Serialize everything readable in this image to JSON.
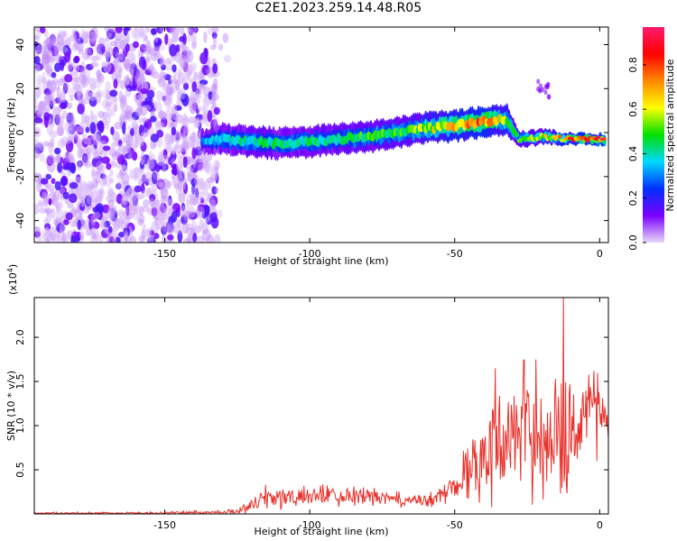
{
  "page": {
    "title": "C2E1.2023.259.14.48.R05"
  },
  "colors": {
    "snr_line": "#e8302a",
    "axis": "#000000",
    "background": "#ffffff"
  },
  "chart_data": [
    {
      "type": "heatmap",
      "title": "",
      "xlabel": "Height of straight line (km)",
      "ylabel": "Frequency (Hz)",
      "xlim": [
        -195,
        3
      ],
      "ylim": [
        -50,
        48
      ],
      "x_ticks": [
        -150,
        -100,
        -50,
        0
      ],
      "x_tick_labels": [
        "-150",
        "-100",
        "-50",
        "0"
      ],
      "y_ticks": [
        -40,
        -20,
        0,
        20,
        40
      ],
      "y_tick_labels": [
        "-40",
        "-20",
        "0",
        "20",
        "40"
      ],
      "colorbar": {
        "label": "Normalized spectral amplitude",
        "range": [
          0,
          0.97
        ],
        "ticks": [
          0.0,
          0.2,
          0.4,
          0.6,
          0.8
        ],
        "tick_labels": [
          "0.0",
          "0.2",
          "0.4",
          "0.6",
          "0.8"
        ],
        "colormap": [
          "#e8d8f8",
          "#7a00ff",
          "#0030ff",
          "#00d8ff",
          "#00e000",
          "#ffff00",
          "#ff8800",
          "#ff0000",
          "#ff1a6e"
        ]
      },
      "noise_region": {
        "x_range": [
          -195,
          -132
        ],
        "amplitude": 0.15
      },
      "ridge": {
        "x": [
          -137,
          -130,
          -120,
          -110,
          -100,
          -90,
          -80,
          -70,
          -60,
          -50,
          -40,
          -32,
          -28,
          -20,
          -10,
          0,
          2
        ],
        "frequency": [
          -4,
          -3,
          -4,
          -5,
          -4,
          -3,
          -2,
          0,
          2,
          3,
          5,
          6,
          -3,
          -2,
          -3,
          -3,
          -3
        ],
        "width": [
          3,
          4,
          4,
          4,
          4,
          4,
          4,
          4,
          4,
          4,
          4,
          4,
          2,
          2,
          1.5,
          1.5,
          1.5
        ],
        "peak_amplitude": [
          0.35,
          0.4,
          0.45,
          0.45,
          0.45,
          0.45,
          0.5,
          0.5,
          0.6,
          0.7,
          0.8,
          0.6,
          0.5,
          0.6,
          0.8,
          0.9,
          0.9
        ]
      },
      "side_feature": {
        "x": [
          -22,
          -16
        ],
        "frequency": [
          22,
          18
        ]
      }
    },
    {
      "type": "line",
      "title": "",
      "xlabel": "Height of straight line (km)",
      "ylabel": "SNR (10 * v/v)",
      "y_multiplier": "(x10",
      "y_multiplier_exp": "4",
      "y_multiplier_close": ")",
      "xlim": [
        -195,
        3
      ],
      "ylim": [
        0,
        2.45
      ],
      "x_ticks": [
        -150,
        -100,
        -50,
        0
      ],
      "x_tick_labels": [
        "-150",
        "-100",
        "-50",
        "0"
      ],
      "y_ticks": [
        0.5,
        1.0,
        1.5,
        2.0
      ],
      "y_tick_labels": [
        "0.5",
        "1.0",
        "1.5",
        "2.0"
      ],
      "series": [
        {
          "color": "#e8302a",
          "envelope_x": [
            -195,
            -160,
            -130,
            -125,
            -120,
            -115,
            -110,
            -100,
            -90,
            -80,
            -70,
            -60,
            -55,
            -50,
            -45,
            -40,
            -35,
            -30,
            -25,
            -20,
            -15,
            -12,
            -10,
            -5,
            0,
            3
          ],
          "envelope_mean": [
            0.01,
            0.01,
            0.02,
            0.04,
            0.1,
            0.2,
            0.18,
            0.2,
            0.22,
            0.2,
            0.16,
            0.15,
            0.2,
            0.35,
            0.5,
            0.7,
            0.8,
            0.9,
            0.95,
            0.9,
            0.9,
            1.05,
            1.0,
            1.2,
            1.25,
            0.9
          ],
          "envelope_amp": [
            0.01,
            0.01,
            0.02,
            0.04,
            0.1,
            0.14,
            0.12,
            0.12,
            0.12,
            0.1,
            0.08,
            0.08,
            0.1,
            0.2,
            0.3,
            0.55,
            0.6,
            0.65,
            0.7,
            0.7,
            0.6,
            0.8,
            0.5,
            0.35,
            0.3,
            0.3
          ],
          "peaks": [
            {
              "x": -12.5,
              "y": 2.45
            },
            {
              "x": -36,
              "y": 1.65
            },
            {
              "x": -22,
              "y": 1.75
            },
            {
              "x": -2,
              "y": 1.62
            },
            {
              "x": -1,
              "y": 0.6
            }
          ]
        }
      ]
    }
  ]
}
